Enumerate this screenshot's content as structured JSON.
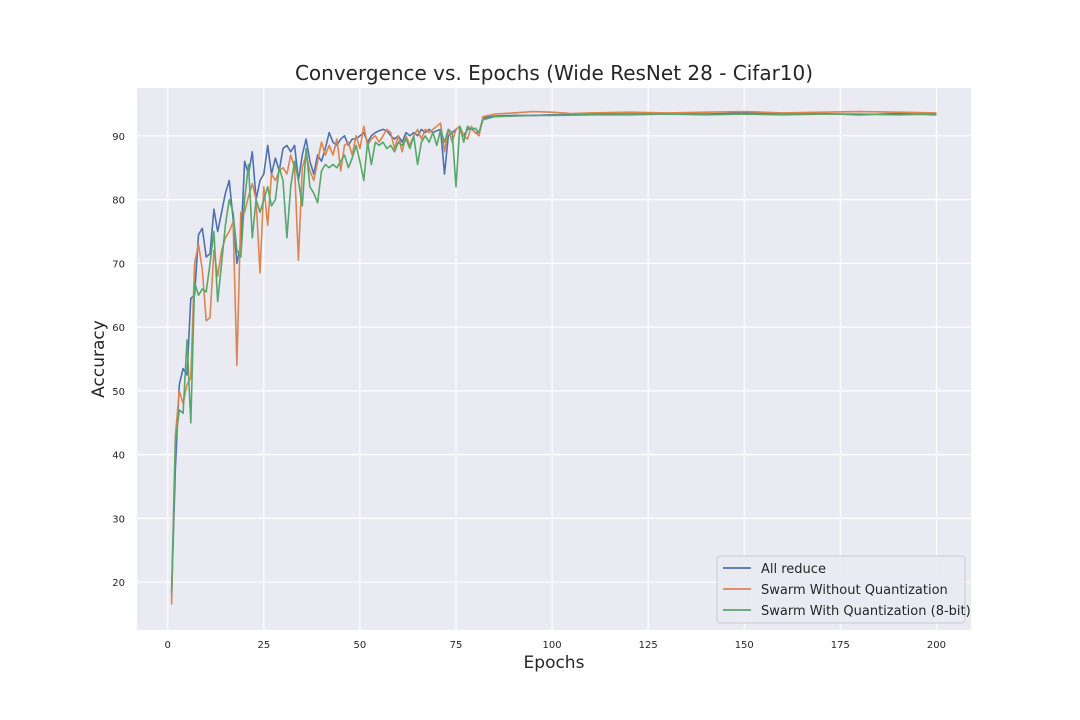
{
  "chart_data": {
    "type": "line",
    "title": "Convergence vs. Epochs (Wide ResNet 28 - Cifar10)",
    "xlabel": "Epochs",
    "ylabel": "Accuracy",
    "xlim": [
      -8,
      209
    ],
    "ylim": [
      12.5,
      97.5
    ],
    "xticks": [
      0,
      25,
      50,
      75,
      100,
      125,
      150,
      175,
      200
    ],
    "yticks": [
      20,
      30,
      40,
      50,
      60,
      70,
      80,
      90
    ],
    "grid": true,
    "legend_position": "bottom-right",
    "series": [
      {
        "name": "All reduce",
        "color": "#4c72b0",
        "points": [
          [
            1,
            18
          ],
          [
            2,
            38
          ],
          [
            3,
            51
          ],
          [
            4,
            53.5
          ],
          [
            5,
            52.5
          ],
          [
            6,
            64.5
          ],
          [
            7,
            65
          ],
          [
            8,
            74.5
          ],
          [
            9,
            75.5
          ],
          [
            10,
            71
          ],
          [
            11,
            71.5
          ],
          [
            12,
            78.5
          ],
          [
            13,
            75
          ],
          [
            14,
            78
          ],
          [
            15,
            81
          ],
          [
            16,
            83
          ],
          [
            17,
            77
          ],
          [
            18,
            70
          ],
          [
            19,
            73
          ],
          [
            20,
            86
          ],
          [
            21,
            84
          ],
          [
            22,
            87.5
          ],
          [
            23,
            80
          ],
          [
            24,
            83
          ],
          [
            25,
            84
          ],
          [
            26,
            88.5
          ],
          [
            27,
            84
          ],
          [
            28,
            86.5
          ],
          [
            29,
            84.5
          ],
          [
            30,
            88
          ],
          [
            31,
            88.5
          ],
          [
            32,
            87.5
          ],
          [
            33,
            88.5
          ],
          [
            34,
            83
          ],
          [
            35,
            87
          ],
          [
            36,
            89.5
          ],
          [
            37,
            86
          ],
          [
            38,
            84
          ],
          [
            39,
            87
          ],
          [
            40,
            86
          ],
          [
            41,
            88
          ],
          [
            42,
            90.5
          ],
          [
            43,
            89
          ],
          [
            44,
            88.5
          ],
          [
            45,
            89.5
          ],
          [
            46,
            90
          ],
          [
            47,
            88.5
          ],
          [
            48,
            89.5
          ],
          [
            49,
            89.5
          ],
          [
            50,
            90
          ],
          [
            51,
            90.5
          ],
          [
            52,
            89
          ],
          [
            53,
            90
          ],
          [
            54,
            90.5
          ],
          [
            55,
            90.8
          ],
          [
            56,
            91
          ],
          [
            57,
            90.8
          ],
          [
            58,
            90
          ],
          [
            59,
            89.5
          ],
          [
            60,
            90
          ],
          [
            61,
            89
          ],
          [
            62,
            90.5
          ],
          [
            63,
            90
          ],
          [
            64,
            90.5
          ],
          [
            65,
            90
          ],
          [
            66,
            91
          ],
          [
            67,
            90.5
          ],
          [
            68,
            91
          ],
          [
            69,
            90.5
          ],
          [
            70,
            90.8
          ],
          [
            71,
            91
          ],
          [
            72,
            84
          ],
          [
            73,
            90
          ],
          [
            74,
            90.5
          ],
          [
            75,
            91
          ],
          [
            76,
            91.5
          ],
          [
            77,
            90
          ],
          [
            78,
            91
          ],
          [
            79,
            91.2
          ],
          [
            80,
            90.5
          ],
          [
            81,
            90.5
          ],
          [
            82,
            92.8
          ],
          [
            85,
            93.1
          ],
          [
            90,
            93.2
          ],
          [
            95,
            93.2
          ],
          [
            100,
            93.3
          ],
          [
            110,
            93.4
          ],
          [
            120,
            93.4
          ],
          [
            130,
            93.5
          ],
          [
            140,
            93.4
          ],
          [
            150,
            93.6
          ],
          [
            160,
            93.4
          ],
          [
            170,
            93.5
          ],
          [
            180,
            93.3
          ],
          [
            190,
            93.5
          ],
          [
            200,
            93.3
          ]
        ]
      },
      {
        "name": "Swarm Without Quantization",
        "color": "#dd8452",
        "points": [
          [
            1,
            16.5
          ],
          [
            2,
            43
          ],
          [
            3,
            50
          ],
          [
            4,
            48
          ],
          [
            5,
            51
          ],
          [
            6,
            52
          ],
          [
            7,
            70
          ],
          [
            8,
            73
          ],
          [
            9,
            69
          ],
          [
            10,
            61
          ],
          [
            11,
            61.5
          ],
          [
            12,
            72
          ],
          [
            13,
            68
          ],
          [
            14,
            72
          ],
          [
            15,
            74
          ],
          [
            16,
            75
          ],
          [
            17,
            76.5
          ],
          [
            18,
            54
          ],
          [
            19,
            78
          ],
          [
            20,
            78
          ],
          [
            21,
            80.5
          ],
          [
            22,
            82.5
          ],
          [
            23,
            80
          ],
          [
            24,
            68.5
          ],
          [
            25,
            82
          ],
          [
            26,
            76
          ],
          [
            27,
            84
          ],
          [
            28,
            83
          ],
          [
            29,
            84.5
          ],
          [
            30,
            85
          ],
          [
            31,
            84
          ],
          [
            32,
            87
          ],
          [
            33,
            85
          ],
          [
            34,
            70.5
          ],
          [
            35,
            85
          ],
          [
            36,
            87
          ],
          [
            37,
            84.5
          ],
          [
            38,
            83
          ],
          [
            39,
            86
          ],
          [
            40,
            89
          ],
          [
            41,
            87
          ],
          [
            42,
            88.5
          ],
          [
            43,
            87
          ],
          [
            44,
            89.5
          ],
          [
            45,
            84.5
          ],
          [
            46,
            88.5
          ],
          [
            47,
            89
          ],
          [
            48,
            87
          ],
          [
            49,
            90
          ],
          [
            50,
            88
          ],
          [
            51,
            91.5
          ],
          [
            52,
            88.5
          ],
          [
            53,
            89.5
          ],
          [
            54,
            90
          ],
          [
            55,
            89
          ],
          [
            56,
            90
          ],
          [
            57,
            91
          ],
          [
            58,
            90.5
          ],
          [
            59,
            88
          ],
          [
            60,
            90
          ],
          [
            61,
            87.5
          ],
          [
            62,
            90
          ],
          [
            63,
            88.5
          ],
          [
            64,
            90
          ],
          [
            65,
            91
          ],
          [
            66,
            89.5
          ],
          [
            67,
            91
          ],
          [
            68,
            90.5
          ],
          [
            69,
            91
          ],
          [
            70,
            91.5
          ],
          [
            71,
            92
          ],
          [
            72,
            87.5
          ],
          [
            73,
            91
          ],
          [
            74,
            89
          ],
          [
            75,
            91
          ],
          [
            76,
            91.5
          ],
          [
            77,
            90
          ],
          [
            78,
            89.5
          ],
          [
            79,
            91.5
          ],
          [
            80,
            90.5
          ],
          [
            81,
            90
          ],
          [
            82,
            93
          ],
          [
            85,
            93.4
          ],
          [
            90,
            93.6
          ],
          [
            95,
            93.8
          ],
          [
            100,
            93.7
          ],
          [
            105,
            93.5
          ],
          [
            110,
            93.6
          ],
          [
            120,
            93.7
          ],
          [
            130,
            93.6
          ],
          [
            140,
            93.7
          ],
          [
            150,
            93.8
          ],
          [
            160,
            93.6
          ],
          [
            170,
            93.7
          ],
          [
            180,
            93.8
          ],
          [
            190,
            93.7
          ],
          [
            200,
            93.6
          ]
        ]
      },
      {
        "name": "Swarm With Quantization (8-bit)",
        "color": "#55a868",
        "points": [
          [
            1,
            18.5
          ],
          [
            2,
            42
          ],
          [
            3,
            47
          ],
          [
            4,
            46.5
          ],
          [
            5,
            58
          ],
          [
            6,
            45
          ],
          [
            7,
            67
          ],
          [
            8,
            65
          ],
          [
            9,
            66
          ],
          [
            10,
            65.5
          ],
          [
            11,
            70
          ],
          [
            12,
            75
          ],
          [
            13,
            64
          ],
          [
            14,
            70
          ],
          [
            15,
            76
          ],
          [
            16,
            80
          ],
          [
            17,
            78
          ],
          [
            18,
            72
          ],
          [
            19,
            71
          ],
          [
            20,
            80
          ],
          [
            21,
            85.5
          ],
          [
            22,
            74
          ],
          [
            23,
            80
          ],
          [
            24,
            78
          ],
          [
            25,
            80
          ],
          [
            26,
            82
          ],
          [
            27,
            79
          ],
          [
            28,
            80
          ],
          [
            29,
            85
          ],
          [
            30,
            83
          ],
          [
            31,
            74
          ],
          [
            32,
            82
          ],
          [
            33,
            86
          ],
          [
            34,
            83
          ],
          [
            35,
            79
          ],
          [
            36,
            88
          ],
          [
            37,
            82
          ],
          [
            38,
            81
          ],
          [
            39,
            79.5
          ],
          [
            40,
            84.5
          ],
          [
            41,
            85.5
          ],
          [
            42,
            85
          ],
          [
            43,
            85.5
          ],
          [
            44,
            85
          ],
          [
            45,
            86
          ],
          [
            46,
            87
          ],
          [
            47,
            85
          ],
          [
            48,
            86.5
          ],
          [
            49,
            88.5
          ],
          [
            50,
            86
          ],
          [
            51,
            83
          ],
          [
            52,
            89
          ],
          [
            53,
            85.5
          ],
          [
            54,
            89
          ],
          [
            55,
            88.5
          ],
          [
            56,
            89
          ],
          [
            57,
            88
          ],
          [
            58,
            88.5
          ],
          [
            59,
            87.5
          ],
          [
            60,
            89
          ],
          [
            61,
            88.5
          ],
          [
            62,
            89.5
          ],
          [
            63,
            88
          ],
          [
            64,
            90
          ],
          [
            65,
            85.5
          ],
          [
            66,
            89
          ],
          [
            67,
            90
          ],
          [
            68,
            89
          ],
          [
            69,
            90.5
          ],
          [
            70,
            88.5
          ],
          [
            71,
            91
          ],
          [
            72,
            89
          ],
          [
            73,
            91
          ],
          [
            74,
            90.5
          ],
          [
            75,
            82
          ],
          [
            76,
            91.5
          ],
          [
            77,
            89
          ],
          [
            78,
            91.5
          ],
          [
            79,
            91
          ],
          [
            80,
            91.2
          ],
          [
            81,
            90.5
          ],
          [
            82,
            92.5
          ],
          [
            85,
            93
          ],
          [
            90,
            93.1
          ],
          [
            95,
            93.2
          ],
          [
            100,
            93.2
          ],
          [
            110,
            93.3
          ],
          [
            120,
            93.3
          ],
          [
            130,
            93.4
          ],
          [
            140,
            93.3
          ],
          [
            150,
            93.4
          ],
          [
            160,
            93.3
          ],
          [
            170,
            93.4
          ],
          [
            180,
            93.4
          ],
          [
            190,
            93.3
          ],
          [
            200,
            93.4
          ]
        ]
      }
    ]
  }
}
